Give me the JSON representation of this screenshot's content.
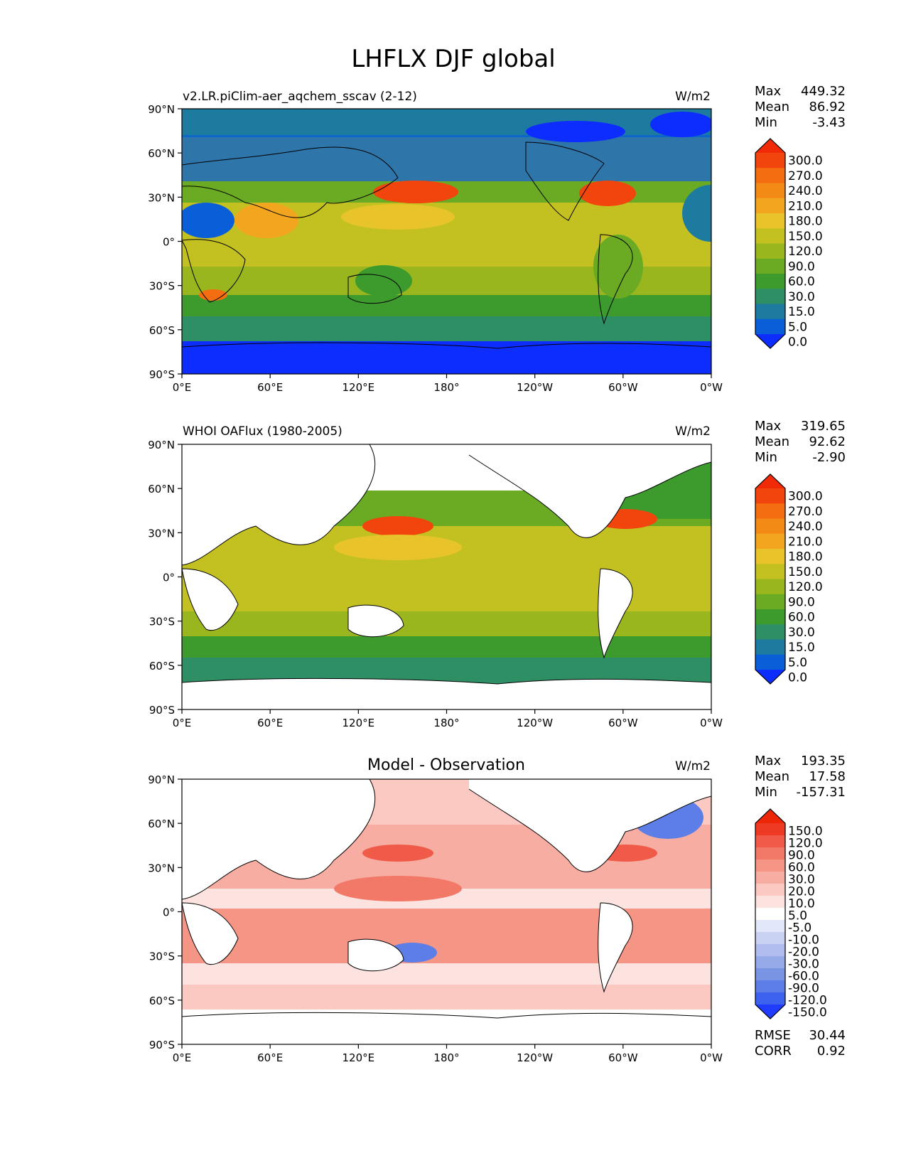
{
  "figure_title": "LHFLX DJF global",
  "panels": [
    {
      "title_left": "v2.LR.piClim-aer_aqchem_sscav (2-12)",
      "title_center": "",
      "units": "W/m2",
      "stats": {
        "max_label": "Max",
        "max": "449.32",
        "mean_label": "Mean",
        "mean": "86.92",
        "min_label": "Min",
        "min": "-3.43"
      },
      "colorbar": {
        "labels": [
          "300.0",
          "270.0",
          "240.0",
          "210.0",
          "180.0",
          "150.0",
          "120.0",
          "90.0",
          "60.0",
          "30.0",
          "15.0",
          "5.0",
          "0.0"
        ]
      }
    },
    {
      "title_left": "WHOI OAFlux (1980-2005)",
      "title_center": "",
      "units": "W/m2",
      "stats": {
        "max_label": "Max",
        "max": "319.65",
        "mean_label": "Mean",
        "mean": "92.62",
        "min_label": "Min",
        "min": "-2.90"
      },
      "colorbar": {
        "labels": [
          "300.0",
          "270.0",
          "240.0",
          "210.0",
          "180.0",
          "150.0",
          "120.0",
          "90.0",
          "60.0",
          "30.0",
          "15.0",
          "5.0",
          "0.0"
        ]
      }
    },
    {
      "title_left": "",
      "title_center": "Model - Observation",
      "units": "W/m2",
      "stats": {
        "max_label": "Max",
        "max": "193.35",
        "mean_label": "Mean",
        "mean": "17.58",
        "min_label": "Min",
        "min": "-157.31"
      },
      "colorbar": {
        "labels": [
          "150.0",
          "120.0",
          "90.0",
          "60.0",
          "30.0",
          "20.0",
          "10.0",
          "5.0",
          "-5.0",
          "-10.0",
          "-20.0",
          "-30.0",
          "-60.0",
          "-90.0",
          "-120.0",
          "-150.0"
        ]
      },
      "metrics": {
        "rmse_label": "RMSE",
        "rmse": "30.44",
        "corr_label": "CORR",
        "corr": "0.92"
      }
    }
  ],
  "axes": {
    "lat_ticks": [
      "90°N",
      "60°N",
      "30°N",
      "0°",
      "30°S",
      "60°S",
      "90°S"
    ],
    "lon_ticks": [
      "0°E",
      "60°E",
      "120°E",
      "180°",
      "120°W",
      "60°W",
      "0°W"
    ]
  },
  "colors": {
    "field_scale": [
      "#0d2dff",
      "#0a5fd9",
      "#1e7ba0",
      "#2f8f64",
      "#3c9b2c",
      "#6aab23",
      "#9ab61f",
      "#c3c121",
      "#e8c42a",
      "#f2a51f",
      "#f48a16",
      "#f46d10",
      "#f2440d",
      "#f12a08"
    ],
    "diff_scale": [
      "#1f3cff",
      "#3c62ee",
      "#5c7ee6",
      "#7a94e4",
      "#96a9e8",
      "#b1bdef",
      "#cad2f4",
      "#e2e7fa",
      "#ffffff",
      "#fde3df",
      "#fbc9c1",
      "#f8ada2",
      "#f59585",
      "#f27868",
      "#ef5b48",
      "#ee3a22",
      "#ed2608"
    ]
  },
  "chart_data": [
    {
      "type": "heatmap",
      "title": "v2.LR.piClim-aer_aqchem_sscav (2-12)",
      "units": "W/m2",
      "xlim": [
        "0°E",
        "0°W"
      ],
      "ylim": [
        "90°S",
        "90°N"
      ],
      "stats": {
        "max": 449.32,
        "mean": 86.92,
        "min": -3.43
      },
      "levels": [
        0,
        5,
        15,
        30,
        60,
        90,
        120,
        150,
        180,
        210,
        240,
        270,
        300
      ],
      "extend": "both"
    },
    {
      "type": "heatmap",
      "title": "WHOI OAFlux (1980-2005)",
      "units": "W/m2",
      "xlim": [
        "0°E",
        "0°W"
      ],
      "ylim": [
        "90°S",
        "90°N"
      ],
      "stats": {
        "max": 319.65,
        "mean": 92.62,
        "min": -2.9
      },
      "levels": [
        0,
        5,
        15,
        30,
        60,
        90,
        120,
        150,
        180,
        210,
        240,
        270,
        300
      ],
      "extend": "both"
    },
    {
      "type": "heatmap",
      "title": "Model - Observation",
      "units": "W/m2",
      "xlim": [
        "0°E",
        "0°W"
      ],
      "ylim": [
        "90°S",
        "90°N"
      ],
      "stats": {
        "max": 193.35,
        "mean": 17.58,
        "min": -157.31
      },
      "levels": [
        -150,
        -120,
        -90,
        -60,
        -30,
        -20,
        -10,
        -5,
        5,
        10,
        20,
        30,
        60,
        90,
        120,
        150
      ],
      "extend": "both",
      "rmse": 30.44,
      "corr": 0.92
    }
  ]
}
